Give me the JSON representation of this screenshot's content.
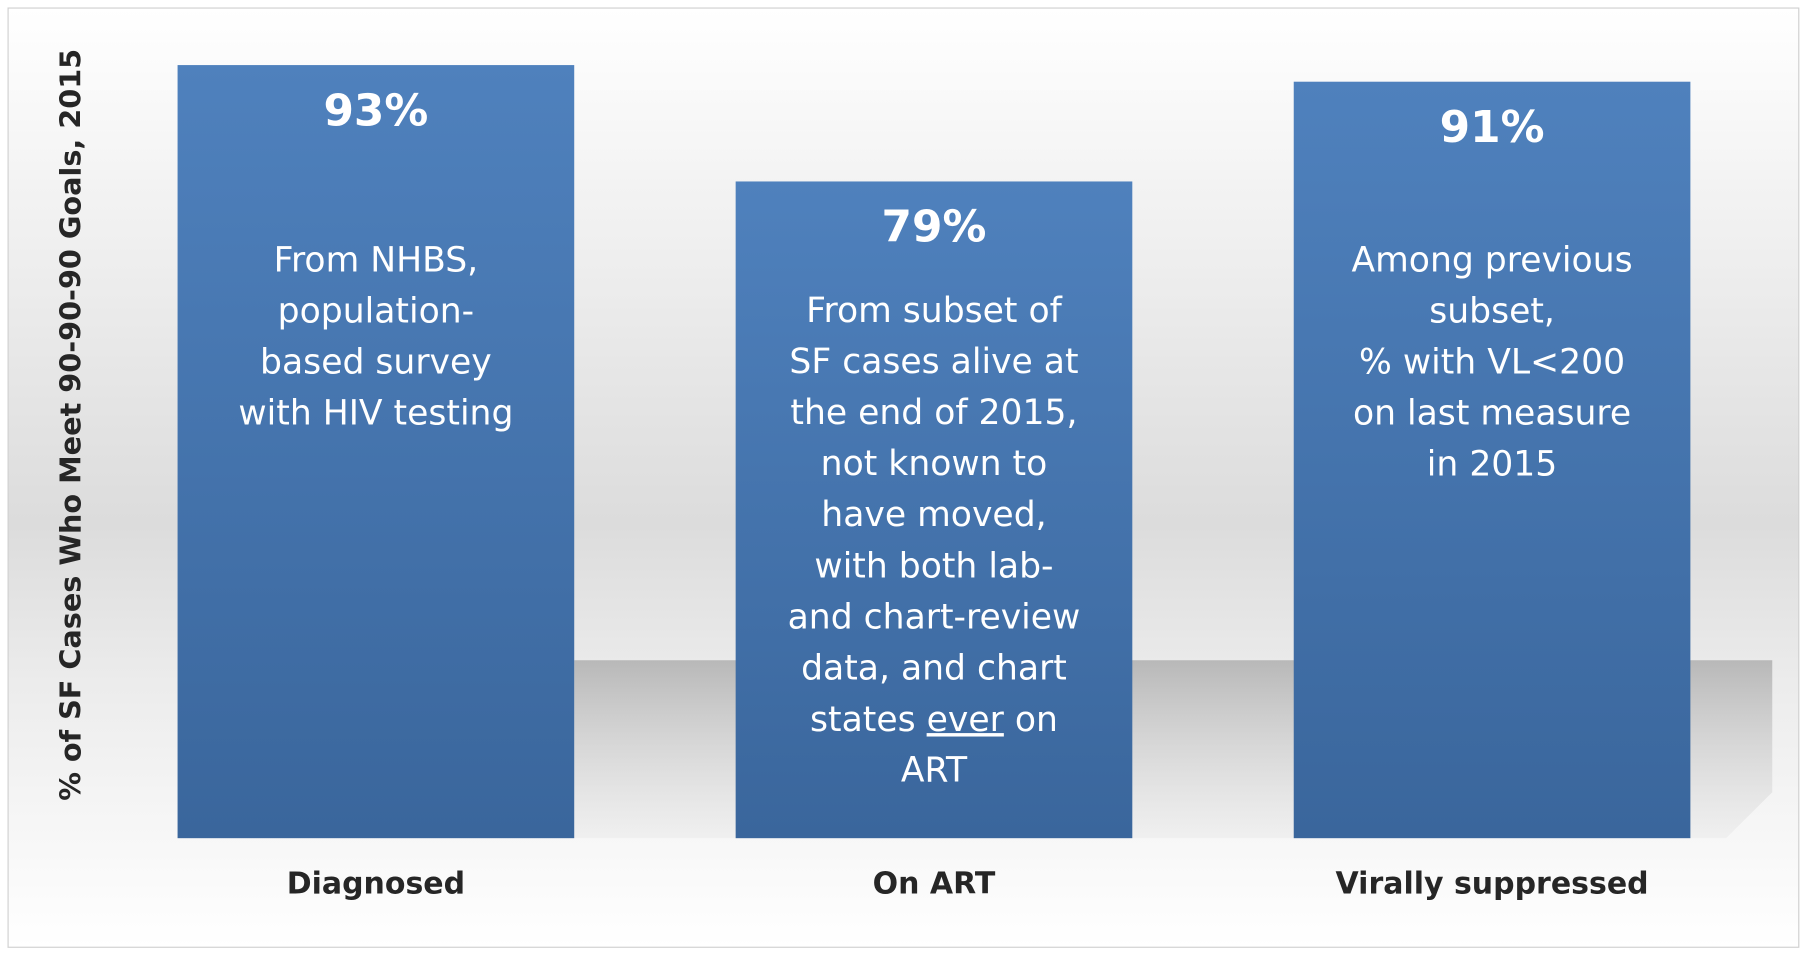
{
  "chart_data": {
    "type": "bar",
    "ylabel": "% of SF Cases Who Meet 90-90-90 Goals, 2015",
    "categories": [
      "Diagnosed",
      "On ART",
      "Virally suppressed"
    ],
    "values": [
      93,
      79,
      91
    ],
    "value_labels": [
      "93%",
      "79%",
      "91%"
    ],
    "color": "#4a7ab5",
    "ylim": [
      0,
      100
    ],
    "annotations": [
      [
        "From NHBS,",
        "population-",
        "based survey",
        "with HIV testing"
      ],
      [
        "From subset of",
        "SF cases  alive at",
        "the end of 2015,",
        "not known to",
        "have moved,",
        "with both lab-",
        "and chart-review",
        "data, and chart",
        [
          "states ",
          {
            "text": "ever",
            "underline": true
          },
          " on"
        ],
        "ART"
      ],
      [
        "Among previous",
        "subset,",
        "% with VL<200",
        "on last measure",
        "in 2015"
      ]
    ]
  }
}
